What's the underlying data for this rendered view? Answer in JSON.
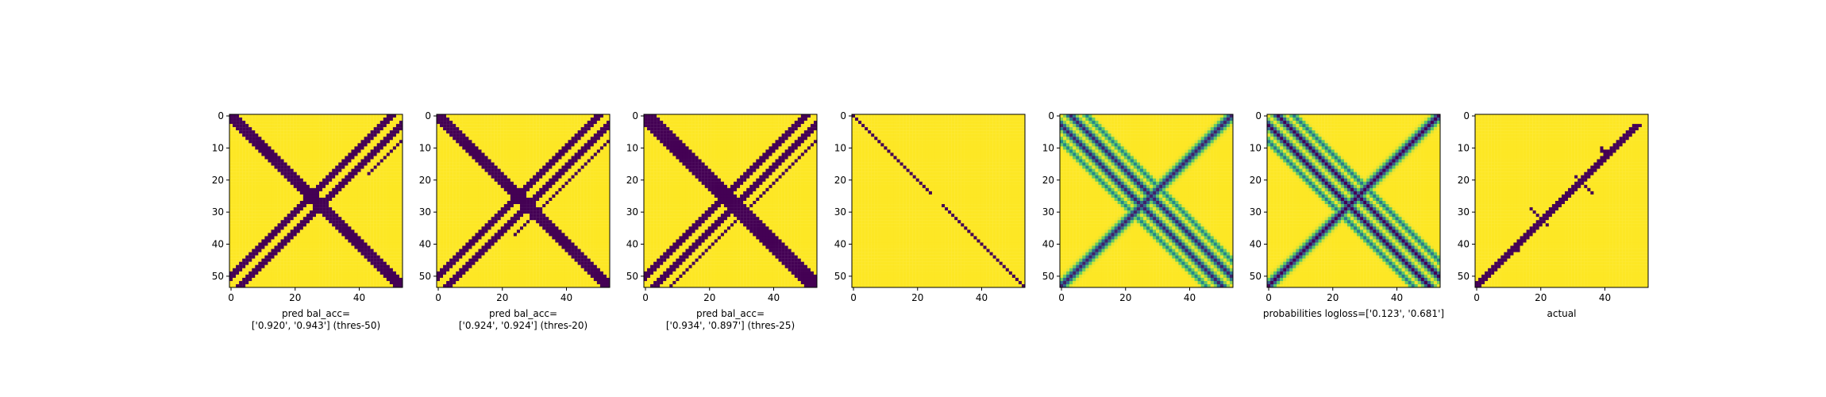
{
  "figure": {
    "background": "#ffffff",
    "colormap": "viridis",
    "colors": {
      "low": "#440154",
      "high": "#fde725"
    }
  },
  "chart_data": [
    {
      "type": "heatmap",
      "shape": [
        54,
        54
      ],
      "xticks": [
        0,
        20,
        40
      ],
      "yticks": [
        0,
        10,
        20,
        30,
        40,
        50
      ],
      "xlabel": [
        "pred bal_acc=",
        "['0.920', '0.943'] (thres-50)"
      ],
      "pattern": {
        "kind": "threshold",
        "antidiag_width": 2,
        "diag_upper_offset": 3,
        "diag_lower_offset": 3,
        "extra_band_offset": 8,
        "extra_band_frac": 0.35
      }
    },
    {
      "type": "heatmap",
      "shape": [
        54,
        54
      ],
      "xticks": [
        0,
        20,
        40
      ],
      "yticks": [
        0,
        10,
        20,
        30,
        40,
        50
      ],
      "xlabel": [
        "pred bal_acc=",
        "['0.924', '0.924'] (thres-20)"
      ],
      "pattern": {
        "kind": "threshold",
        "antidiag_width": 2,
        "diag_upper_offset": 3,
        "diag_lower_offset": 3,
        "extra_band_offset": 8,
        "extra_band_frac": 0.7
      }
    },
    {
      "type": "heatmap",
      "shape": [
        54,
        54
      ],
      "xticks": [
        0,
        20,
        40
      ],
      "yticks": [
        0,
        10,
        20,
        30,
        40,
        50
      ],
      "xlabel": [
        "pred bal_acc=",
        "['0.934', '0.897'] (thres-25)"
      ],
      "pattern": {
        "kind": "threshold",
        "antidiag_width": 3,
        "diag_upper_offset": 3,
        "diag_lower_offset": 3,
        "extra_band_offset": 8,
        "extra_band_frac": 1.0
      }
    },
    {
      "type": "heatmap",
      "shape": [
        54,
        54
      ],
      "xticks": [
        0,
        20,
        40
      ],
      "yticks": [
        0,
        10,
        20,
        30,
        40,
        50
      ],
      "xlabel": [],
      "pattern": {
        "kind": "identity"
      }
    },
    {
      "type": "heatmap",
      "shape": [
        54,
        54
      ],
      "xticks": [
        0,
        20,
        40
      ],
      "yticks": [
        0,
        10,
        20,
        30,
        40,
        50
      ],
      "xlabel": [],
      "pattern": {
        "kind": "probability",
        "contrast": 0.9
      }
    },
    {
      "type": "heatmap",
      "shape": [
        54,
        54
      ],
      "xticks": [
        0,
        20,
        40
      ],
      "yticks": [
        0,
        10,
        20,
        30,
        40,
        50
      ],
      "xlabel": [
        "probabilities logloss=['0.123', '0.681']"
      ],
      "pattern": {
        "kind": "probability",
        "contrast": 1.0
      }
    },
    {
      "type": "heatmap",
      "shape": [
        54,
        54
      ],
      "xticks": [
        0,
        20,
        40
      ],
      "yticks": [
        0,
        10,
        20,
        30,
        40,
        50
      ],
      "xlabel": [
        "actual"
      ],
      "pattern": {
        "kind": "actual"
      }
    }
  ]
}
